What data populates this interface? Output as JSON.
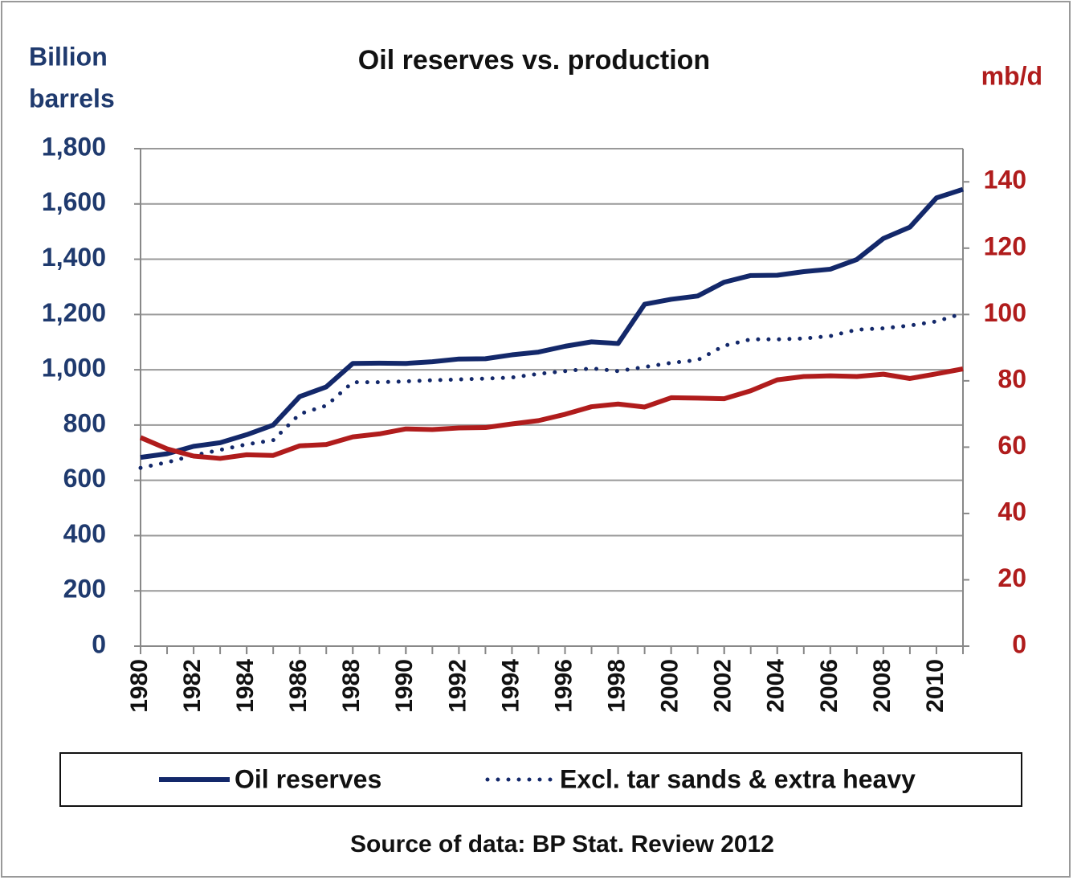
{
  "chart_data": {
    "type": "line",
    "title": "Oil reserves vs. production",
    "ylabel": [
      "Billion",
      "barrels"
    ],
    "y2label": "mb/d",
    "source": "Source of data: BP Stat. Review  2012",
    "x": [
      1980,
      1981,
      1982,
      1983,
      1984,
      1985,
      1986,
      1987,
      1988,
      1989,
      1990,
      1991,
      1992,
      1993,
      1994,
      1995,
      1996,
      1997,
      1998,
      1999,
      2000,
      2001,
      2002,
      2003,
      2004,
      2005,
      2006,
      2007,
      2008,
      2009,
      2010,
      2011
    ],
    "xlim": [
      1980,
      2011
    ],
    "xticks": [
      1980,
      1982,
      1984,
      1986,
      1988,
      1990,
      1992,
      1994,
      1996,
      1998,
      2000,
      2002,
      2004,
      2006,
      2008,
      2010
    ],
    "ylim": [
      0,
      1800
    ],
    "yticks": [
      0,
      200,
      400,
      600,
      800,
      {
        "value": 1000,
        "label": "1,000"
      },
      {
        "value": 1200,
        "label": "1,200"
      },
      {
        "value": 1400,
        "label": "1,400"
      },
      {
        "value": 1600,
        "label": "1,600"
      },
      {
        "value": 1800,
        "label": "1,800"
      }
    ],
    "y2lim": [
      0,
      150
    ],
    "y2ticks": [
      0,
      20,
      40,
      60,
      80,
      100,
      120,
      140
    ],
    "grid": true,
    "ycolor": "#1f3a6e",
    "y2color": "#b01c1c",
    "series": [
      {
        "name": "Oil reserves",
        "color": "#13286a",
        "style": "solid",
        "values": [
          683,
          696,
          723,
          736,
          765,
          800,
          903,
          938,
          1023,
          1024,
          1023,
          1029,
          1039,
          1040,
          1054,
          1064,
          1085,
          1101,
          1095,
          1237,
          1255,
          1267,
          1317,
          1341,
          1342,
          1355,
          1364,
          1399,
          1475,
          1516,
          1622,
          1653
        ]
      },
      {
        "name": "Excl. tar sands & extra heavy",
        "color": "#13286a",
        "style": "dotted",
        "values": [
          645,
          665,
          690,
          710,
          730,
          745,
          840,
          870,
          955,
          955,
          958,
          962,
          965,
          968,
          972,
          985,
          995,
          1005,
          995,
          1010,
          1025,
          1035,
          1087,
          1110,
          1110,
          1113,
          1122,
          1145,
          1150,
          1160,
          1175,
          1204
        ]
      },
      {
        "color": "#b01c1c",
        "style": "solid",
        "axis": "y2",
        "values": [
          62.9,
          59.5,
          57.3,
          56.6,
          57.7,
          57.5,
          60.4,
          60.8,
          63.1,
          64.0,
          65.5,
          65.3,
          65.8,
          65.9,
          67.0,
          68.0,
          69.9,
          72.2,
          73.0,
          72.1,
          74.9,
          74.8,
          74.6,
          77.0,
          80.3,
          81.3,
          81.5,
          81.3,
          82.0,
          80.7,
          82.1,
          83.6
        ]
      }
    ]
  }
}
